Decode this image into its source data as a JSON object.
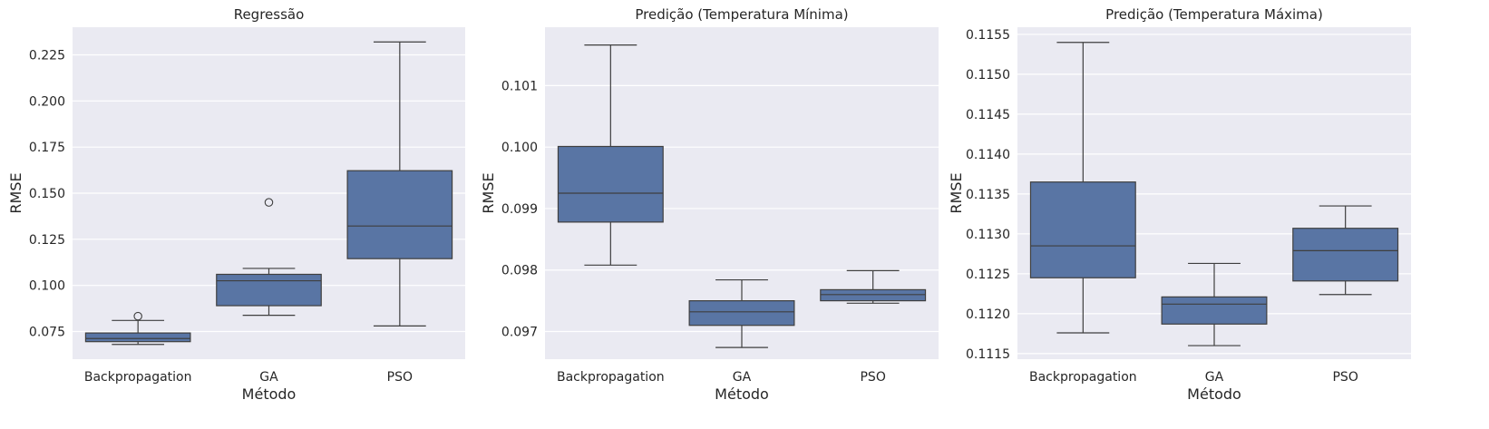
{
  "chart_data": [
    {
      "type": "box",
      "title": "Regressão",
      "xlabel": "Método",
      "ylabel": "RMSE",
      "categories": [
        "Backpropagation",
        "GA",
        "PSO"
      ],
      "ylim": [
        0.06,
        0.24
      ],
      "yticks": [
        0.075,
        0.1,
        0.125,
        0.15,
        0.175,
        0.2,
        0.225
      ],
      "tick_decimals": 3,
      "grid": true,
      "color": "#5975a4",
      "boxes": [
        {
          "whislo": 0.068,
          "q1": 0.0695,
          "med": 0.0712,
          "q3": 0.0742,
          "whishi": 0.081,
          "fliers": [
            0.0833
          ]
        },
        {
          "whislo": 0.0838,
          "q1": 0.089,
          "med": 0.1025,
          "q3": 0.106,
          "whishi": 0.1092,
          "fliers": [
            0.145
          ]
        },
        {
          "whislo": 0.078,
          "q1": 0.1145,
          "med": 0.1322,
          "q3": 0.1622,
          "whishi": 0.232,
          "fliers": []
        }
      ]
    },
    {
      "type": "box",
      "title": "Predição (Temperatura Mínima)",
      "xlabel": "Método",
      "ylabel": "RMSE",
      "categories": [
        "Backpropagation",
        "GA",
        "PSO"
      ],
      "ylim": [
        0.09655,
        0.10195
      ],
      "yticks": [
        0.097,
        0.098,
        0.099,
        0.1,
        0.101
      ],
      "tick_decimals": 3,
      "grid": true,
      "color": "#5975a4",
      "boxes": [
        {
          "whislo": 0.09808,
          "q1": 0.09878,
          "med": 0.09925,
          "q3": 0.10001,
          "whishi": 0.10166,
          "fliers": []
        },
        {
          "whislo": 0.09674,
          "q1": 0.0971,
          "med": 0.09732,
          "q3": 0.0975,
          "whishi": 0.09784,
          "fliers": []
        },
        {
          "whislo": 0.09746,
          "q1": 0.0975,
          "med": 0.0976,
          "q3": 0.09768,
          "whishi": 0.09799,
          "fliers": []
        }
      ]
    },
    {
      "type": "box",
      "title": "Predição (Temperatura Máxima)",
      "xlabel": "Método",
      "ylabel": "RMSE",
      "categories": [
        "Backpropagation",
        "GA",
        "PSO"
      ],
      "ylim": [
        0.11143,
        0.11559
      ],
      "yticks": [
        0.1115,
        0.112,
        0.1125,
        0.113,
        0.1135,
        0.114,
        0.1145,
        0.115,
        0.1155
      ],
      "tick_decimals": 4,
      "grid": true,
      "color": "#5975a4",
      "boxes": [
        {
          "whislo": 0.11176,
          "q1": 0.11245,
          "med": 0.11285,
          "q3": 0.11365,
          "whishi": 0.1154,
          "fliers": []
        },
        {
          "whislo": 0.1116,
          "q1": 0.11187,
          "med": 0.11212,
          "q3": 0.11221,
          "whishi": 0.11263,
          "fliers": []
        },
        {
          "whislo": 0.11224,
          "q1": 0.11241,
          "med": 0.11279,
          "q3": 0.11307,
          "whishi": 0.11335,
          "fliers": []
        }
      ]
    }
  ]
}
